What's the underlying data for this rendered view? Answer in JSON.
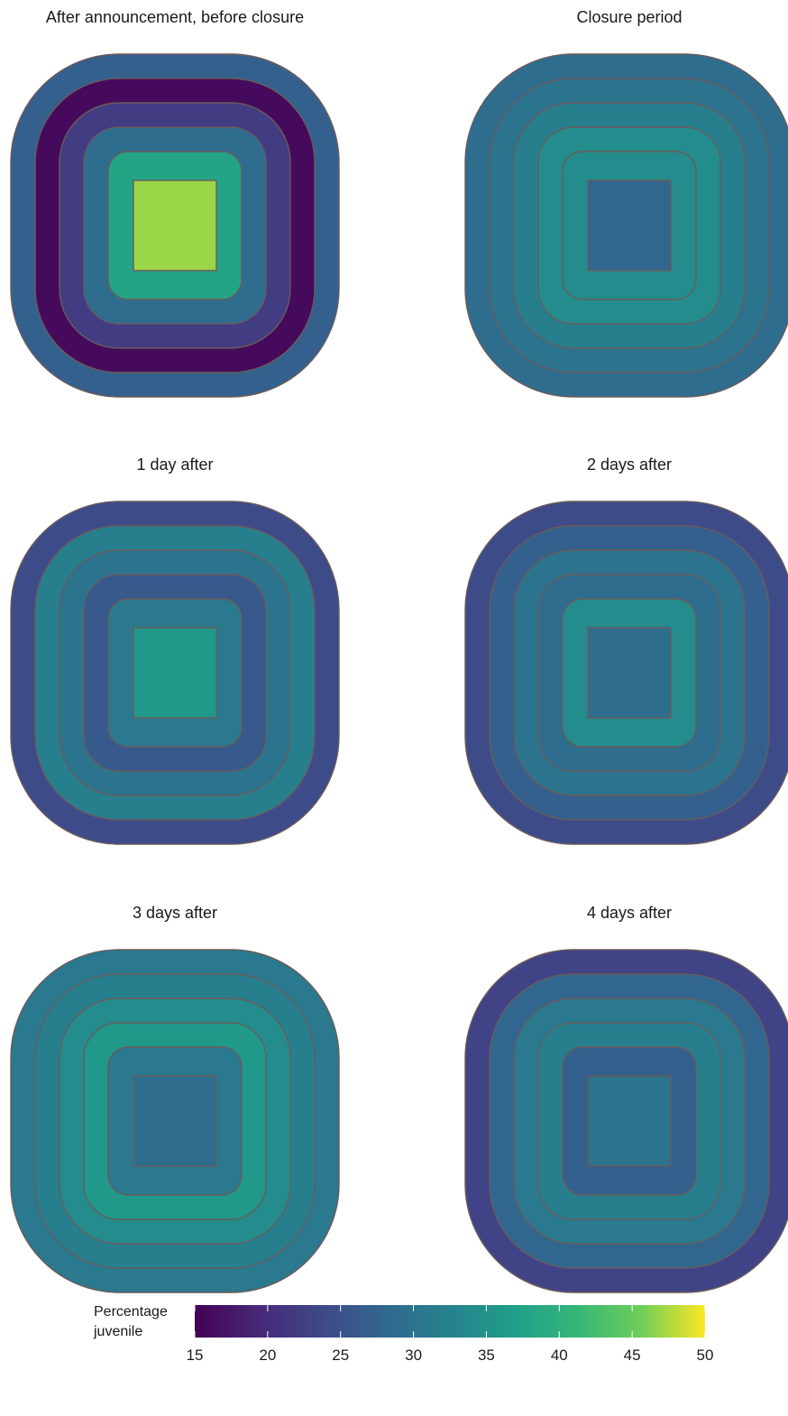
{
  "chart_data": {
    "type": "heatmap",
    "rings_order": "outermost to innermost (centre square last)",
    "panels": [
      {
        "title": "After announcement, before closure",
        "values": [
          27,
          16,
          22,
          29,
          38,
          47
        ]
      },
      {
        "title": "Closure period",
        "values": [
          29,
          30,
          32,
          34,
          34,
          28
        ]
      },
      {
        "title": "1 day after",
        "values": [
          24,
          32,
          30,
          26,
          31,
          36
        ]
      },
      {
        "title": "2 days after",
        "values": [
          24,
          27,
          30,
          29,
          34,
          29
        ]
      },
      {
        "title": "3 days after",
        "values": [
          31,
          32,
          34,
          36,
          31,
          29
        ]
      },
      {
        "title": "4 days after",
        "values": [
          23,
          28,
          31,
          32,
          27,
          30
        ]
      }
    ],
    "legend": {
      "title": "Percentage juvenile",
      "title_lines": [
        "Percentage",
        "juvenile"
      ],
      "min": 15,
      "max": 50,
      "ticks": [
        "15",
        "20",
        "25",
        "30",
        "35",
        "40",
        "45",
        "50"
      ],
      "colormap": "viridis"
    }
  }
}
